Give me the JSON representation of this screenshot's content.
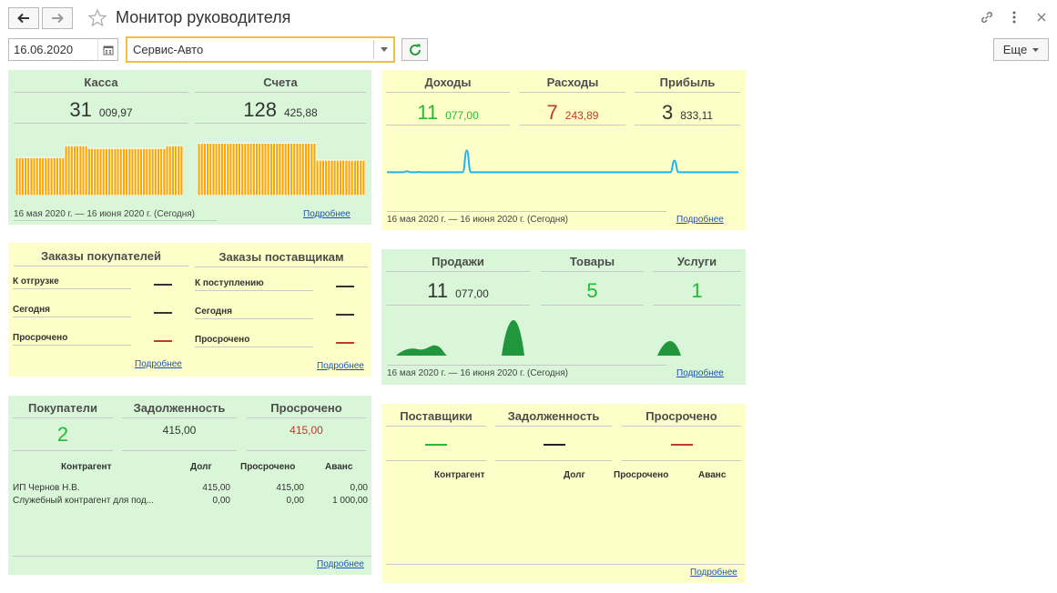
{
  "header": {
    "title": "Монитор руководителя",
    "back_icon": "arrow-left-icon",
    "forward_icon": "arrow-right-icon",
    "favorite_icon": "star-icon",
    "link_icon": "link-icon",
    "menu_icon": "more-vertical-icon",
    "close_icon": "close-icon"
  },
  "toolbar": {
    "date_value": "16.06.2020",
    "organization_value": "Сервис-Авто",
    "more_label": "Еще"
  },
  "colors": {
    "green_panel": "#d9f6d9",
    "yellow_panel": "#fefec8",
    "bars": "#ffa500",
    "positive": "#22bb33",
    "negative": "#c0392b",
    "line_chart": "#1eb4f0",
    "area_chart": "#22963c"
  },
  "cash_panel": {
    "kassa": {
      "title": "Касса",
      "int": "31",
      "frac": "009,97",
      "bars": [
        0.58,
        0.58,
        0.58,
        0.58,
        0.58,
        0.58,
        0.58,
        0.58,
        0.58,
        0.58,
        0.58,
        0.58,
        0.58,
        0.58,
        0.58,
        0.58,
        0.58,
        0.76,
        0.76,
        0.76,
        0.76,
        0.76,
        0.76,
        0.76,
        0.76,
        0.72,
        0.72,
        0.72,
        0.72,
        0.72,
        0.72,
        0.72,
        0.72,
        0.72,
        0.72,
        0.72,
        0.72,
        0.72,
        0.72,
        0.72,
        0.72,
        0.72,
        0.72,
        0.72,
        0.72,
        0.72,
        0.72,
        0.72,
        0.72,
        0.72,
        0.72,
        0.72,
        0.76,
        0.76,
        0.76,
        0.76,
        0.76,
        0.76
      ]
    },
    "accounts": {
      "title": "Счета",
      "int": "128",
      "frac": "425,88",
      "bars": [
        0.8,
        0.8,
        0.8,
        0.8,
        0.8,
        0.8,
        0.8,
        0.8,
        0.8,
        0.8,
        0.8,
        0.8,
        0.8,
        0.8,
        0.8,
        0.8,
        0.8,
        0.8,
        0.8,
        0.8,
        0.8,
        0.8,
        0.8,
        0.8,
        0.8,
        0.8,
        0.8,
        0.8,
        0.8,
        0.8,
        0.8,
        0.8,
        0.8,
        0.8,
        0.8,
        0.8,
        0.8,
        0.8,
        0.8,
        0.8,
        0.8,
        0.54,
        0.54,
        0.54,
        0.54,
        0.54,
        0.54,
        0.54,
        0.54,
        0.54,
        0.54,
        0.54,
        0.54,
        0.54,
        0.54,
        0.54,
        0.54,
        0.54
      ]
    },
    "period": "16 мая 2020 г. — 16 июня 2020 г. (Сегодня)",
    "more_link": "Подробнее"
  },
  "finance_panel": {
    "income": {
      "title": "Доходы",
      "int": "11",
      "frac": "077,00"
    },
    "expenses": {
      "title": "Расходы",
      "int": "7",
      "frac": "243,89"
    },
    "profit": {
      "title": "Прибыль",
      "int": "3",
      "frac": "833,11"
    },
    "trend": [
      0.05,
      0.05,
      0.05,
      0.05,
      0.05,
      0.08,
      0.05,
      0.05,
      0.06,
      0.05,
      0.05,
      0.05,
      0.05,
      0.05,
      0.05,
      0.05,
      0.05,
      0.05,
      0.05,
      0.05,
      0.8,
      0.05,
      0.05,
      0.05,
      0.05,
      0.05,
      0.05,
      0.05,
      0.05,
      0.05,
      0.05,
      0.05,
      0.05,
      0.05,
      0.05,
      0.05,
      0.05,
      0.05,
      0.05,
      0.05,
      0.05,
      0.05,
      0.05,
      0.05,
      0.05,
      0.05,
      0.05,
      0.05,
      0.05,
      0.05,
      0.05,
      0.05,
      0.05,
      0.05,
      0.05,
      0.05,
      0.05,
      0.05,
      0.05,
      0.05,
      0.05,
      0.05,
      0.05,
      0.05,
      0.05,
      0.05,
      0.05,
      0.05,
      0.05,
      0.05,
      0.05,
      0.05,
      0.45,
      0.05,
      0.05,
      0.05,
      0.05,
      0.05,
      0.05,
      0.05,
      0.05,
      0.05,
      0.05,
      0.05,
      0.05,
      0.05,
      0.05,
      0.05,
      0.05
    ],
    "period": "16 мая 2020 г. — 16 июня 2020 г. (Сегодня)",
    "more_link": "Подробнее"
  },
  "orders_panel": {
    "customers_title": "Заказы покупателей",
    "suppliers_title": "Заказы поставщикам",
    "customers_rows": [
      {
        "label": "К отгрузке",
        "value": "—"
      },
      {
        "label": "Сегодня",
        "value": "—"
      },
      {
        "label": "Просрочено",
        "value": "—"
      }
    ],
    "suppliers_rows": [
      {
        "label": "К поступлению",
        "value": "—"
      },
      {
        "label": "Сегодня",
        "value": "—"
      },
      {
        "label": "Просрочено",
        "value": "—"
      }
    ],
    "more_link_customers": "Подробнее",
    "more_link_suppliers": "Подробнее"
  },
  "sales_panel": {
    "sales": {
      "title": "Продажи",
      "int": "11",
      "frac": "077,00"
    },
    "goods": {
      "title": "Товары",
      "value": "5"
    },
    "services": {
      "title": "Услуги",
      "value": "1"
    },
    "period": "16 мая 2020 г. — 16 июня 2020 г. (Сегодня)",
    "more_link": "Подробнее"
  },
  "buyers_panel": {
    "buyers": {
      "title": "Покупатели",
      "value": "2"
    },
    "debt": {
      "title": "Задолженность",
      "value": "415,00"
    },
    "overdue": {
      "title": "Просрочено",
      "value": "415,00"
    },
    "columns": [
      "Контрагент",
      "Долг",
      "Просрочено",
      "Аванс"
    ],
    "rows": [
      [
        "ИП Чернов Н.В.",
        "415,00",
        "415,00",
        "0,00"
      ],
      [
        "Служебный контрагент для под...",
        "0,00",
        "0,00",
        "1 000,00"
      ]
    ],
    "more_link": "Подробнее"
  },
  "suppliers_panel": {
    "suppliers": {
      "title": "Поставщики",
      "value": "—"
    },
    "debt": {
      "title": "Задолженность",
      "value": "—"
    },
    "overdue": {
      "title": "Просрочено",
      "value": "—"
    },
    "columns": [
      "Контрагент",
      "Долг",
      "Просрочено",
      "Аванс"
    ],
    "more_link": "Подробнее"
  }
}
